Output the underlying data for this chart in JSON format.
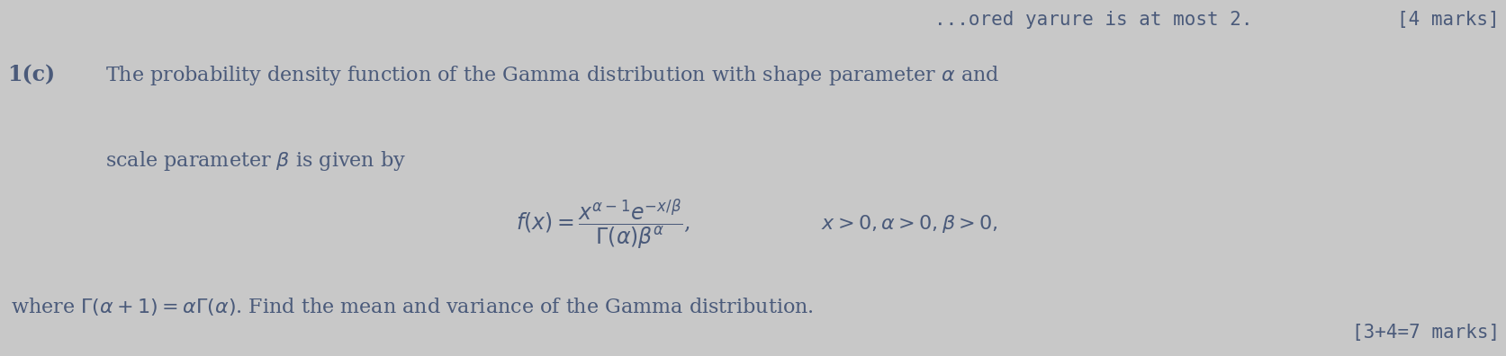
{
  "background_color": "#c8c8c8",
  "font_color": "#4a5a7a",
  "top_right_text": "[4 marks]",
  "top_center_text": "...ored yarure is at most 2.",
  "label": "1(c)",
  "line1": "The probability density function of the Gamma distribution with shape parameter $\\alpha$ and",
  "line2": "scale parameter $\\beta$ is given by",
  "formula": "$f(x) = \\dfrac{x^{\\alpha-1}e^{-x/\\beta}}{\\Gamma(\\alpha)\\beta^{\\alpha}}$,",
  "conditions": "$x > 0, \\alpha > 0, \\beta > 0,$",
  "where_line": "where $\\Gamma(\\alpha + 1) = \\alpha\\Gamma(\\alpha)$. Find the mean and variance of the Gamma distribution.",
  "bottom_right": "[3+4=7 marks]",
  "font_size_main": 16,
  "font_size_formula": 17,
  "font_size_marks": 15
}
